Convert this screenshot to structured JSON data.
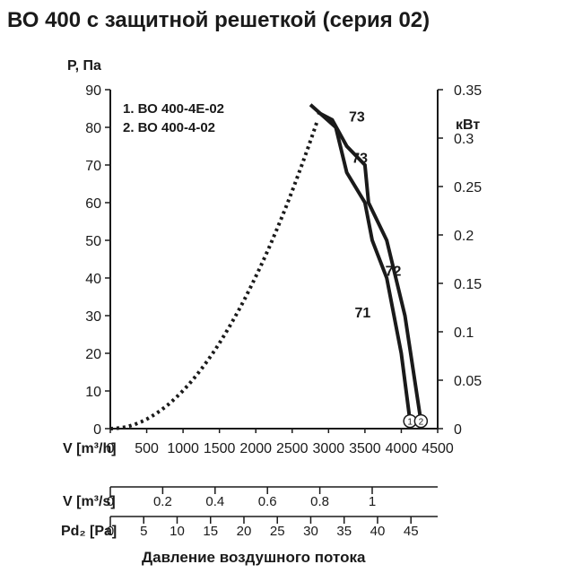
{
  "chart_data": {
    "type": "line",
    "title": "ВО 400 с защитной решеткой (серия 02)",
    "ylabel": "P, Па",
    "ylabel_right": "кВт",
    "xlabel": "Давление воздушного потока",
    "x_axis_label_main": "V [m³/h]",
    "xlim": [
      0,
      4500
    ],
    "ylim": [
      0,
      90
    ],
    "y2lim": [
      0,
      0.35
    ],
    "x_ticks": [
      "0",
      "500",
      "1000",
      "1500",
      "2000",
      "2500",
      "3000",
      "3500",
      "4000",
      "4500"
    ],
    "y_ticks": [
      "0",
      "10",
      "20",
      "30",
      "40",
      "50",
      "60",
      "70",
      "80",
      "90"
    ],
    "y2_ticks": [
      "0",
      "0.05",
      "0.1",
      "0.15",
      "0.2",
      "0.25",
      "0.3",
      "0.35"
    ],
    "legend": [
      "1. ВО 400-4Е-02",
      "2. ВО 400-4-02"
    ],
    "series": [
      {
        "name": "1",
        "x": [
          2750,
          3100,
          3250,
          3500,
          3600,
          3800,
          4000,
          4120
        ],
        "y": [
          86,
          80,
          68,
          60,
          50,
          40,
          20,
          2
        ],
        "markers": [
          "73",
          "72",
          "71"
        ]
      },
      {
        "name": "2",
        "x": [
          2850,
          3050,
          3250,
          3500,
          3550,
          3800,
          4050,
          4270
        ],
        "y": [
          84,
          82,
          75,
          70,
          60,
          50,
          30,
          2
        ],
        "markers": [
          "73",
          "72",
          "71"
        ]
      }
    ],
    "system_curve": {
      "x": [
        0,
        500,
        1000,
        1500,
        2000,
        2500,
        2850
      ],
      "y": [
        0,
        2,
        10,
        22,
        40,
        63,
        82
      ]
    },
    "curve_labels": [
      "73",
      "73",
      "72",
      "71"
    ],
    "end_markers": [
      "1",
      "2"
    ],
    "secondary_axes": [
      {
        "label": "V [m³/s]",
        "ticks": [
          "0",
          "0.2",
          "0.4",
          "0.6",
          "0.8",
          "1"
        ],
        "values": [
          0,
          0.2,
          0.4,
          0.6,
          0.8,
          1.0
        ],
        "range": [
          0,
          1.25
        ]
      },
      {
        "label": "Pd₂ [Pa]",
        "ticks": [
          "0",
          "5",
          "10",
          "15",
          "20",
          "25",
          "30",
          "35",
          "40",
          "45"
        ],
        "values": [
          0,
          5,
          10,
          15,
          20,
          25,
          30,
          35,
          40,
          45
        ],
        "range": [
          0,
          49
        ]
      }
    ]
  }
}
